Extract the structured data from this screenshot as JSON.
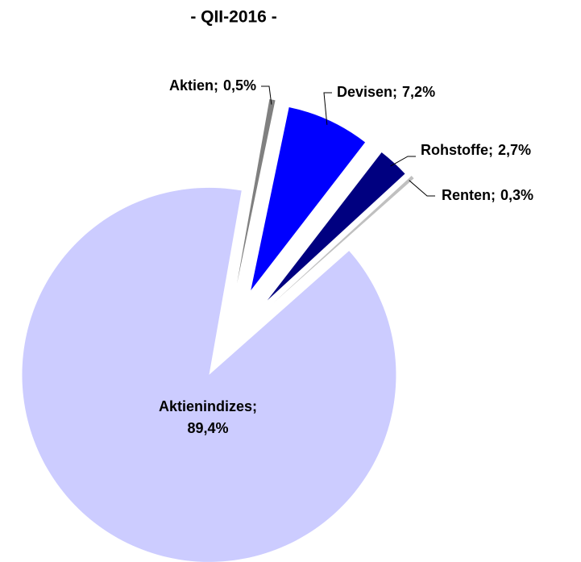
{
  "chart_data": {
    "type": "pie",
    "title": "- QII-2016 -",
    "categories": [
      "Aktien",
      "Devisen",
      "Rohstoffe",
      "Renten",
      "Aktienindizes"
    ],
    "values": [
      0.5,
      7.2,
      2.7,
      0.3,
      89.4
    ],
    "value_labels": [
      "0,5%",
      "7,2%",
      "2,7%",
      "0,3%",
      "89,4%"
    ],
    "label_separator": ";",
    "colors": [
      "#808080",
      "#0000ff",
      "#000080",
      "#c0c0c0",
      "#ccccff"
    ]
  }
}
